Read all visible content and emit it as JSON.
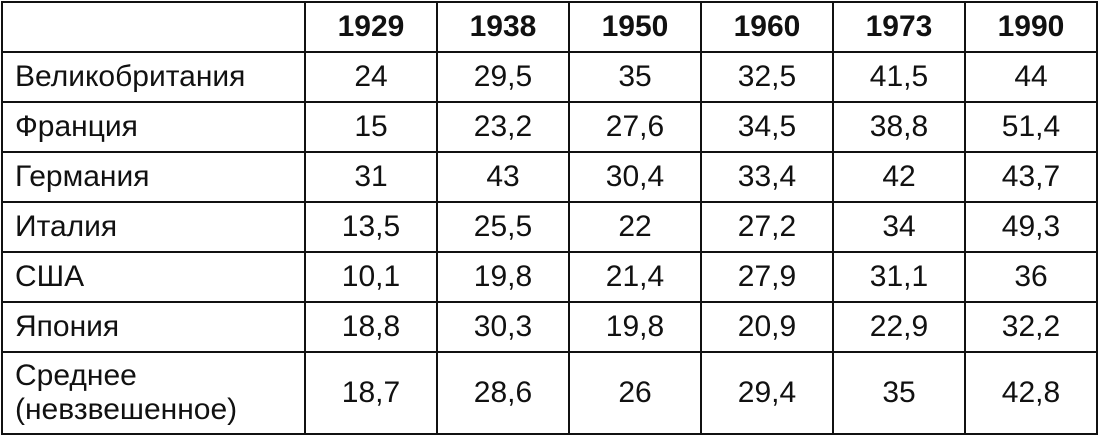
{
  "table": {
    "corner": "",
    "years": [
      "1929",
      "1938",
      "1950",
      "1960",
      "1973",
      "1990"
    ],
    "rows": [
      {
        "label": "Великобритания",
        "values": [
          "24",
          "29,5",
          "35",
          "32,5",
          "41,5",
          "44"
        ]
      },
      {
        "label": "Франция",
        "values": [
          "15",
          "23,2",
          "27,6",
          "34,5",
          "38,8",
          "51,4"
        ]
      },
      {
        "label": "Германия",
        "values": [
          "31",
          "43",
          "30,4",
          "33,4",
          "42",
          "43,7"
        ]
      },
      {
        "label": "Италия",
        "values": [
          "13,5",
          "25,5",
          "22",
          "27,2",
          "34",
          "49,3"
        ]
      },
      {
        "label": "США",
        "values": [
          "10,1",
          "19,8",
          "21,4",
          "27,9",
          "31,1",
          "36"
        ]
      },
      {
        "label": "Япония",
        "values": [
          "18,8",
          "30,3",
          "19,8",
          "20,9",
          "22,9",
          "32,2"
        ]
      }
    ],
    "average_row": {
      "label_line1": "Среднее",
      "label_line2": "(невзвешенное)",
      "values": [
        "18,7",
        "28,6",
        "26",
        "29,4",
        "35",
        "42,8"
      ]
    }
  }
}
